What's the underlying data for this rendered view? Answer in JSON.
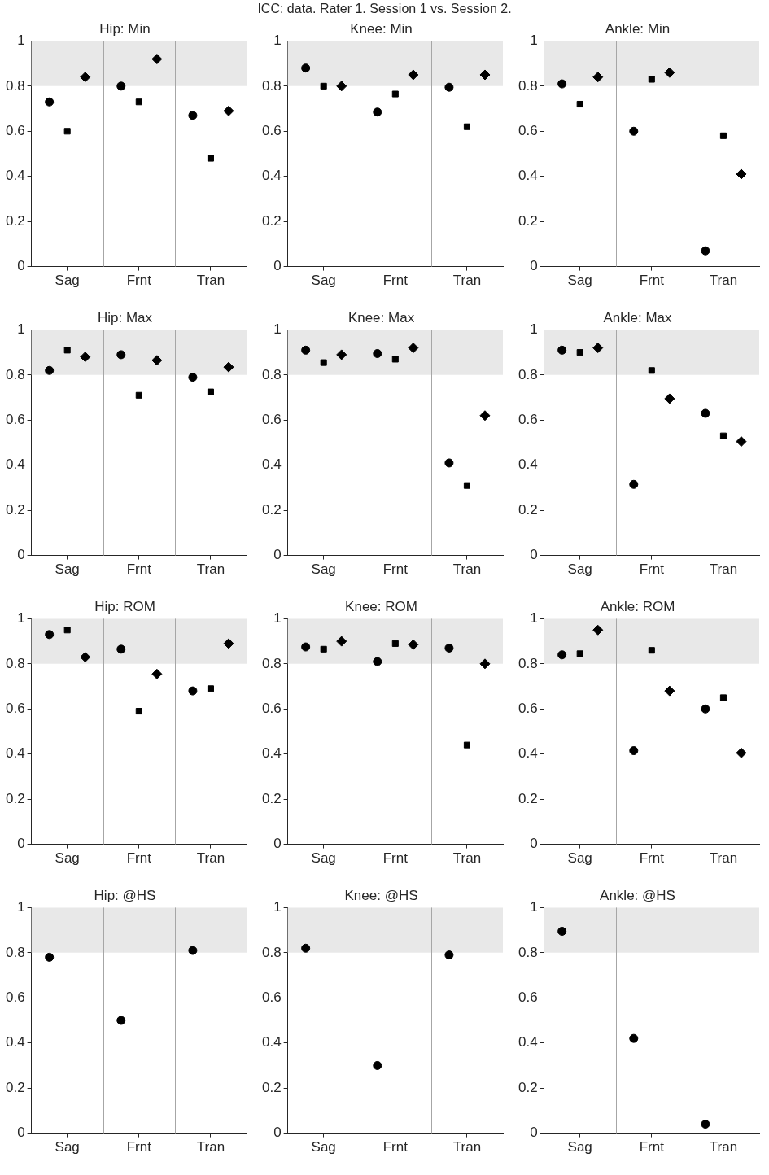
{
  "chart_data": [
    {
      "type": "scatter",
      "title": "Hip: Min",
      "annotations": [
        "ICC: data. Rater 1. Session 1 vs. Session 2."
      ],
      "categories": [
        "Sag",
        "Frnt",
        "Tran"
      ],
      "ylim": [
        0,
        1
      ],
      "yticks": [
        0,
        0.2,
        0.4,
        0.6,
        0.8,
        1
      ],
      "grid": "x",
      "bands": [
        {
          "axis": "y",
          "from": 0.8,
          "to": 1,
          "color": "#e8e8e8"
        }
      ],
      "series": [
        {
          "color": "#000000",
          "marker": "circle",
          "values": [
            0.73,
            0.8,
            0.67
          ]
        },
        {
          "color": "#000000",
          "marker": "square",
          "values": [
            0.6,
            0.73,
            0.48
          ]
        },
        {
          "color": "#000000",
          "marker": "diamond",
          "values": [
            0.84,
            0.92,
            0.69
          ]
        }
      ]
    },
    {
      "type": "scatter",
      "title": "Knee: Min",
      "categories": [
        "Sag",
        "Frnt",
        "Tran"
      ],
      "ylim": [
        0,
        1
      ],
      "yticks": [
        0,
        0.2,
        0.4,
        0.6,
        0.8,
        1
      ],
      "grid": "x",
      "bands": [
        {
          "axis": "y",
          "from": 0.8,
          "to": 1,
          "color": "#e8e8e8"
        }
      ],
      "series": [
        {
          "color": "#000000",
          "marker": "circle",
          "values": [
            0.88,
            0.685,
            0.795
          ]
        },
        {
          "color": "#000000",
          "marker": "square",
          "values": [
            0.8,
            0.765,
            0.62
          ]
        },
        {
          "color": "#000000",
          "marker": "diamond",
          "values": [
            0.8,
            0.85,
            0.85
          ]
        }
      ]
    },
    {
      "type": "scatter",
      "title": "Ankle: Min",
      "categories": [
        "Sag",
        "Frnt",
        "Tran"
      ],
      "ylim": [
        0,
        1
      ],
      "yticks": [
        0,
        0.2,
        0.4,
        0.6,
        0.8,
        1
      ],
      "grid": "x",
      "bands": [
        {
          "axis": "y",
          "from": 0.8,
          "to": 1,
          "color": "#e8e8e8"
        }
      ],
      "series": [
        {
          "color": "#000000",
          "marker": "circle",
          "values": [
            0.81,
            0.6,
            0.07
          ]
        },
        {
          "color": "#000000",
          "marker": "square",
          "values": [
            0.72,
            0.83,
            0.58
          ]
        },
        {
          "color": "#000000",
          "marker": "diamond",
          "values": [
            0.84,
            0.86,
            0.41
          ]
        }
      ]
    },
    {
      "type": "scatter",
      "title": "Hip: Max",
      "categories": [
        "Sag",
        "Frnt",
        "Tran"
      ],
      "ylim": [
        0,
        1
      ],
      "yticks": [
        0,
        0.2,
        0.4,
        0.6,
        0.8,
        1
      ],
      "grid": "x",
      "bands": [
        {
          "axis": "y",
          "from": 0.8,
          "to": 1,
          "color": "#e8e8e8"
        }
      ],
      "series": [
        {
          "color": "#000000",
          "marker": "circle",
          "values": [
            0.82,
            0.89,
            0.79
          ]
        },
        {
          "color": "#000000",
          "marker": "square",
          "values": [
            0.91,
            0.71,
            0.725
          ]
        },
        {
          "color": "#000000",
          "marker": "diamond",
          "values": [
            0.88,
            0.865,
            0.835
          ]
        }
      ]
    },
    {
      "type": "scatter",
      "title": "Knee: Max",
      "categories": [
        "Sag",
        "Frnt",
        "Tran"
      ],
      "ylim": [
        0,
        1
      ],
      "yticks": [
        0,
        0.2,
        0.4,
        0.6,
        0.8,
        1
      ],
      "grid": "x",
      "bands": [
        {
          "axis": "y",
          "from": 0.8,
          "to": 1,
          "color": "#e8e8e8"
        }
      ],
      "series": [
        {
          "color": "#000000",
          "marker": "circle",
          "values": [
            0.91,
            0.895,
            0.41
          ]
        },
        {
          "color": "#000000",
          "marker": "square",
          "values": [
            0.855,
            0.87,
            0.31
          ]
        },
        {
          "color": "#000000",
          "marker": "diamond",
          "values": [
            0.89,
            0.92,
            0.62
          ]
        }
      ]
    },
    {
      "type": "scatter",
      "title": "Ankle: Max",
      "categories": [
        "Sag",
        "Frnt",
        "Tran"
      ],
      "ylim": [
        0,
        1
      ],
      "yticks": [
        0,
        0.2,
        0.4,
        0.6,
        0.8,
        1
      ],
      "grid": "x",
      "bands": [
        {
          "axis": "y",
          "from": 0.8,
          "to": 1,
          "color": "#e8e8e8"
        }
      ],
      "series": [
        {
          "color": "#000000",
          "marker": "circle",
          "values": [
            0.91,
            0.315,
            0.63
          ]
        },
        {
          "color": "#000000",
          "marker": "square",
          "values": [
            0.9,
            0.82,
            0.53
          ]
        },
        {
          "color": "#000000",
          "marker": "diamond",
          "values": [
            0.92,
            0.695,
            0.505
          ]
        }
      ]
    },
    {
      "type": "scatter",
      "title": "Hip: ROM",
      "categories": [
        "Sag",
        "Frnt",
        "Tran"
      ],
      "ylim": [
        0,
        1
      ],
      "yticks": [
        0,
        0.2,
        0.4,
        0.6,
        0.8,
        1
      ],
      "grid": "x",
      "bands": [
        {
          "axis": "y",
          "from": 0.8,
          "to": 1,
          "color": "#e8e8e8"
        }
      ],
      "series": [
        {
          "color": "#000000",
          "marker": "circle",
          "values": [
            0.93,
            0.865,
            0.68
          ]
        },
        {
          "color": "#000000",
          "marker": "square",
          "values": [
            0.95,
            0.59,
            0.69
          ]
        },
        {
          "color": "#000000",
          "marker": "diamond",
          "values": [
            0.83,
            0.755,
            0.89
          ]
        }
      ]
    },
    {
      "type": "scatter",
      "title": "Knee: ROM",
      "categories": [
        "Sag",
        "Frnt",
        "Tran"
      ],
      "ylim": [
        0,
        1
      ],
      "yticks": [
        0,
        0.2,
        0.4,
        0.6,
        0.8,
        1
      ],
      "grid": "x",
      "bands": [
        {
          "axis": "y",
          "from": 0.8,
          "to": 1,
          "color": "#e8e8e8"
        }
      ],
      "series": [
        {
          "color": "#000000",
          "marker": "circle",
          "values": [
            0.875,
            0.81,
            0.87
          ]
        },
        {
          "color": "#000000",
          "marker": "square",
          "values": [
            0.865,
            0.89,
            0.44
          ]
        },
        {
          "color": "#000000",
          "marker": "diamond",
          "values": [
            0.9,
            0.885,
            0.8
          ]
        }
      ]
    },
    {
      "type": "scatter",
      "title": "Ankle: ROM",
      "categories": [
        "Sag",
        "Frnt",
        "Tran"
      ],
      "ylim": [
        0,
        1
      ],
      "yticks": [
        0,
        0.2,
        0.4,
        0.6,
        0.8,
        1
      ],
      "grid": "x",
      "bands": [
        {
          "axis": "y",
          "from": 0.8,
          "to": 1,
          "color": "#e8e8e8"
        }
      ],
      "series": [
        {
          "color": "#000000",
          "marker": "circle",
          "values": [
            0.84,
            0.415,
            0.6
          ]
        },
        {
          "color": "#000000",
          "marker": "square",
          "values": [
            0.845,
            0.86,
            0.65
          ]
        },
        {
          "color": "#000000",
          "marker": "diamond",
          "values": [
            0.95,
            0.68,
            0.405
          ]
        }
      ]
    },
    {
      "type": "scatter",
      "title": "Hip: @HS",
      "categories": [
        "Sag",
        "Frnt",
        "Tran"
      ],
      "ylim": [
        0,
        1
      ],
      "yticks": [
        0,
        0.2,
        0.4,
        0.6,
        0.8,
        1
      ],
      "grid": "x",
      "bands": [
        {
          "axis": "y",
          "from": 0.8,
          "to": 1,
          "color": "#e8e8e8"
        }
      ],
      "series": [
        {
          "color": "#000000",
          "marker": "circle",
          "values": [
            0.78,
            0.5,
            0.81
          ]
        }
      ]
    },
    {
      "type": "scatter",
      "title": "Knee: @HS",
      "categories": [
        "Sag",
        "Frnt",
        "Tran"
      ],
      "ylim": [
        0,
        1
      ],
      "yticks": [
        0,
        0.2,
        0.4,
        0.6,
        0.8,
        1
      ],
      "grid": "x",
      "bands": [
        {
          "axis": "y",
          "from": 0.8,
          "to": 1,
          "color": "#e8e8e8"
        }
      ],
      "series": [
        {
          "color": "#000000",
          "marker": "circle",
          "values": [
            0.82,
            0.3,
            0.79
          ]
        }
      ]
    },
    {
      "type": "scatter",
      "title": "Ankle: @HS",
      "categories": [
        "Sag",
        "Frnt",
        "Tran"
      ],
      "ylim": [
        0,
        1
      ],
      "yticks": [
        0,
        0.2,
        0.4,
        0.6,
        0.8,
        1
      ],
      "grid": "x",
      "bands": [
        {
          "axis": "y",
          "from": 0.8,
          "to": 1,
          "color": "#e8e8e8"
        }
      ],
      "series": [
        {
          "color": "#000000",
          "marker": "circle",
          "values": [
            0.895,
            0.42,
            0.04
          ]
        }
      ]
    }
  ]
}
